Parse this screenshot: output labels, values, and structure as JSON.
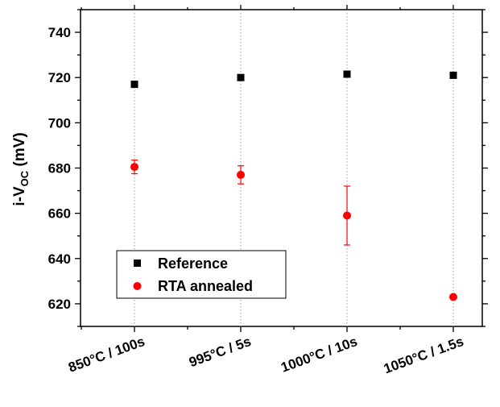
{
  "chart_data": {
    "type": "scatter",
    "categories": [
      "850°C / 100s",
      "995°C / 5s",
      "1000°C / 10s",
      "1050°C / 1.5s"
    ],
    "ylabel": {
      "main": "i-V",
      "sub": "OC",
      "unit": " (mV)"
    },
    "ylim": [
      610,
      750
    ],
    "yticks": [
      620,
      640,
      660,
      680,
      700,
      720,
      740
    ],
    "grid": "vertical dotted lines at categories",
    "legend_position": "lower-left",
    "series": [
      {
        "name": "Reference",
        "marker": "square",
        "color": "#000000",
        "values": [
          717,
          720,
          721.5,
          721
        ]
      },
      {
        "name": "RTA annealed",
        "marker": "circle",
        "color": "#ff0000",
        "values": [
          680.5,
          677,
          659,
          623
        ],
        "errors": [
          3,
          4,
          13,
          null
        ]
      }
    ]
  }
}
